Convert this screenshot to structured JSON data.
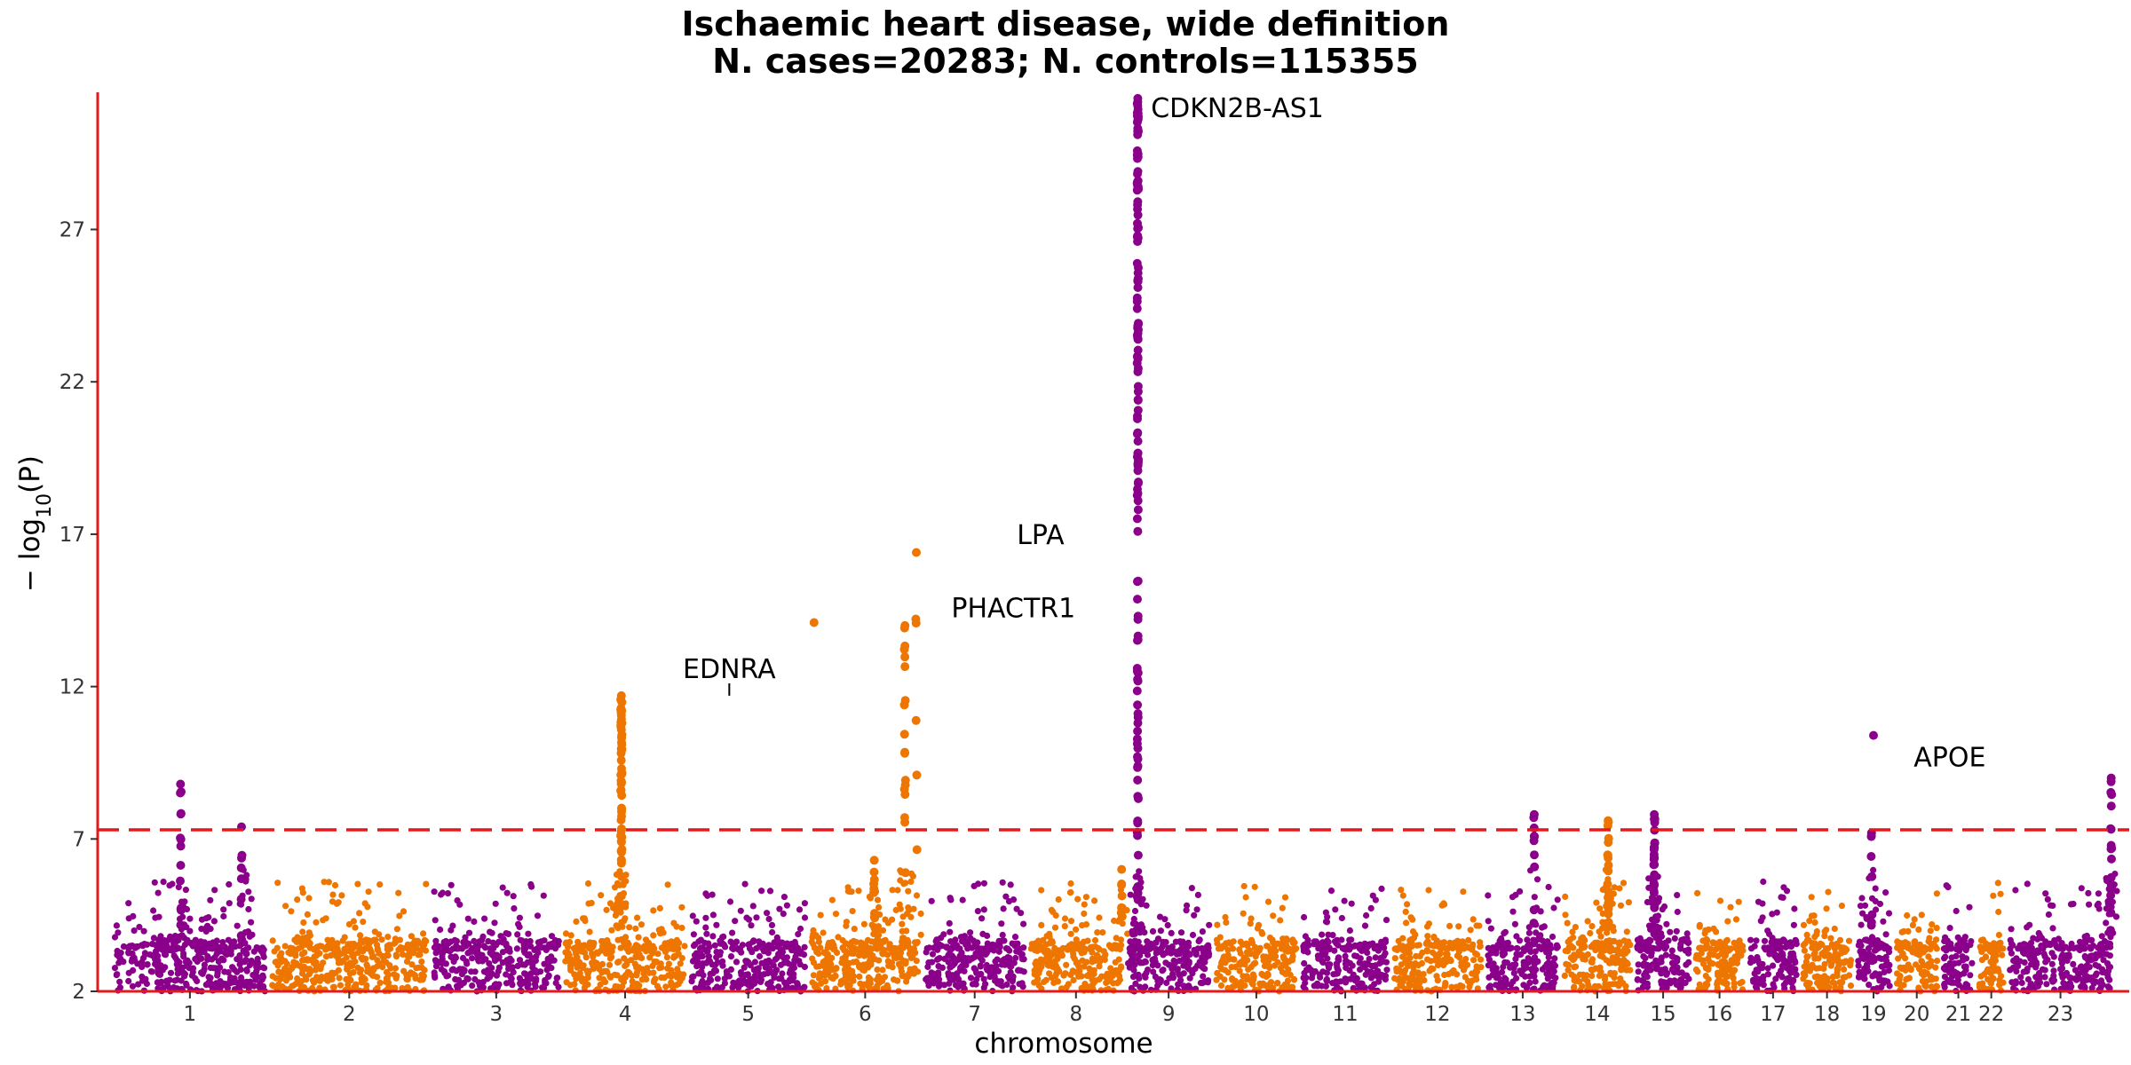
{
  "chart_data": {
    "type": "scatter",
    "title": "Ischaemic heart disease, wide definition",
    "subtitle": "N. cases=20283; N. controls=115355",
    "xlabel": "chromosome",
    "ylabel_main": "− log",
    "ylabel_sub": "10",
    "ylabel_tail": "(P)",
    "ylim": [
      2,
      31.5
    ],
    "yticks": [
      2,
      7,
      12,
      17,
      22,
      27
    ],
    "significance_threshold": 7.3,
    "chromosomes": [
      {
        "label": "1",
        "start": 0,
        "end": 190
      },
      {
        "label": "2",
        "start": 190,
        "end": 387
      },
      {
        "label": "3",
        "start": 387,
        "end": 547
      },
      {
        "label": "4",
        "start": 547,
        "end": 700
      },
      {
        "label": "5",
        "start": 700,
        "end": 846
      },
      {
        "label": "6",
        "start": 846,
        "end": 984
      },
      {
        "label": "7",
        "start": 984,
        "end": 1112
      },
      {
        "label": "8",
        "start": 1112,
        "end": 1230
      },
      {
        "label": "9",
        "start": 1230,
        "end": 1337
      },
      {
        "label": "10",
        "start": 1337,
        "end": 1443
      },
      {
        "label": "11",
        "start": 1443,
        "end": 1553
      },
      {
        "label": "12",
        "start": 1553,
        "end": 1667
      },
      {
        "label": "13",
        "start": 1667,
        "end": 1760
      },
      {
        "label": "14",
        "start": 1760,
        "end": 1848
      },
      {
        "label": "15",
        "start": 1848,
        "end": 1920
      },
      {
        "label": "16",
        "start": 1920,
        "end": 1985
      },
      {
        "label": "17",
        "start": 1985,
        "end": 2050
      },
      {
        "label": "18",
        "start": 2050,
        "end": 2116
      },
      {
        "label": "19",
        "start": 2116,
        "end": 2163
      },
      {
        "label": "20",
        "start": 2163,
        "end": 2221
      },
      {
        "label": "21",
        "start": 2221,
        "end": 2264
      },
      {
        "label": "22",
        "start": 2264,
        "end": 2301
      },
      {
        "label": "23",
        "start": 2301,
        "end": 2432
      }
    ],
    "x_range": [
      -17,
      2450
    ],
    "colors": {
      "odd": "#8b008b",
      "even": "#ee7600",
      "threshold": "#e31a1c",
      "axis": "#e31a1c"
    },
    "peaks": [
      {
        "chr": 1,
        "pos": 0.44,
        "max": 8.8,
        "n": 14
      },
      {
        "chr": 1,
        "pos": 0.83,
        "max": 7.4,
        "n": 8
      },
      {
        "chr": 4,
        "pos": 0.47,
        "max": 11.7,
        "n": 60
      },
      {
        "chr": 6,
        "pos": 0.05,
        "max": 14.1,
        "n": 1
      },
      {
        "chr": 6,
        "pos": 0.58,
        "max": 6.3,
        "n": 10
      },
      {
        "chr": 6,
        "pos": 0.85,
        "max": 14.0,
        "n": 18
      },
      {
        "chr": 6,
        "pos": 0.95,
        "max": 16.4,
        "n": 6
      },
      {
        "chr": 8,
        "pos": 0.97,
        "max": 6.0,
        "n": 10
      },
      {
        "chr": 9,
        "pos": 0.15,
        "max": 31.3,
        "n": 140
      },
      {
        "chr": 13,
        "pos": 0.65,
        "max": 7.8,
        "n": 10
      },
      {
        "chr": 14,
        "pos": 0.65,
        "max": 7.6,
        "n": 18
      },
      {
        "chr": 15,
        "pos": 0.35,
        "max": 7.8,
        "n": 30
      },
      {
        "chr": 19,
        "pos": 0.5,
        "max": 10.4,
        "n": 1
      },
      {
        "chr": 19,
        "pos": 0.45,
        "max": 7.2,
        "n": 8
      },
      {
        "chr": 23,
        "pos": 0.97,
        "max": 9.0,
        "n": 18
      }
    ],
    "annotations": [
      {
        "gene": "CDKN2B-AS1",
        "x": 1262,
        "y": 31.0,
        "anchor": "start"
      },
      {
        "gene": "LPA",
        "x": 1128,
        "y": 17.0,
        "anchor": "middle"
      },
      {
        "gene": "PHACTR1",
        "x": 1095,
        "y": 14.6,
        "anchor": "middle"
      },
      {
        "gene": "EDNRA",
        "x": 750,
        "y": 12.6,
        "anchor": "middle",
        "line_to": 11.7
      },
      {
        "gene": "APOE",
        "x": 2232,
        "y": 9.7,
        "anchor": "middle"
      }
    ]
  }
}
